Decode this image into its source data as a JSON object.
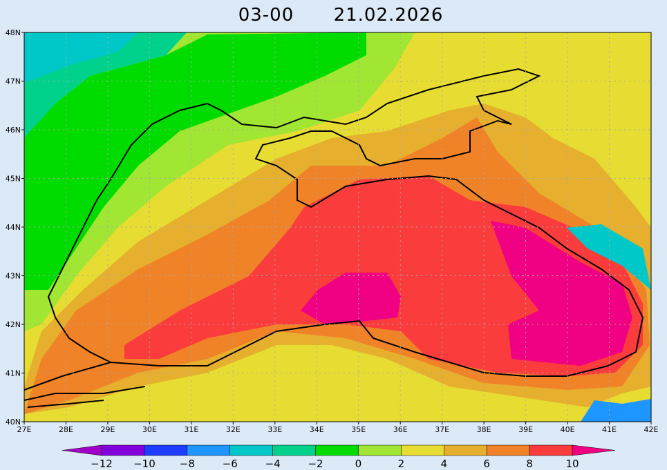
{
  "title": {
    "time": "03-00",
    "date": "21.02.2026"
  },
  "x_axis_labels": [
    "27E",
    "28E",
    "29E",
    "30E",
    "31E",
    "32E",
    "33E",
    "34E",
    "35E",
    "36E",
    "37E",
    "38E",
    "39E",
    "40E",
    "41E",
    "42E"
  ],
  "y_axis_labels": [
    "40N",
    "41N",
    "42N",
    "43N",
    "44N",
    "45N",
    "46N",
    "47N",
    "48N"
  ],
  "colorbar": {
    "labels": [
      "−12",
      "−10",
      "−8",
      "−6",
      "−4",
      "−2",
      "0",
      "2",
      "4",
      "6",
      "8",
      "10"
    ],
    "colors": [
      "#a000c8",
      "#8200dc",
      "#1e3cff",
      "#1e96ff",
      "#00c8c8",
      "#00d28c",
      "#00dc00",
      "#a0e632",
      "#e6dc32",
      "#e6af2d",
      "#f08228",
      "#fa3c3c",
      "#f00082"
    ]
  }
}
